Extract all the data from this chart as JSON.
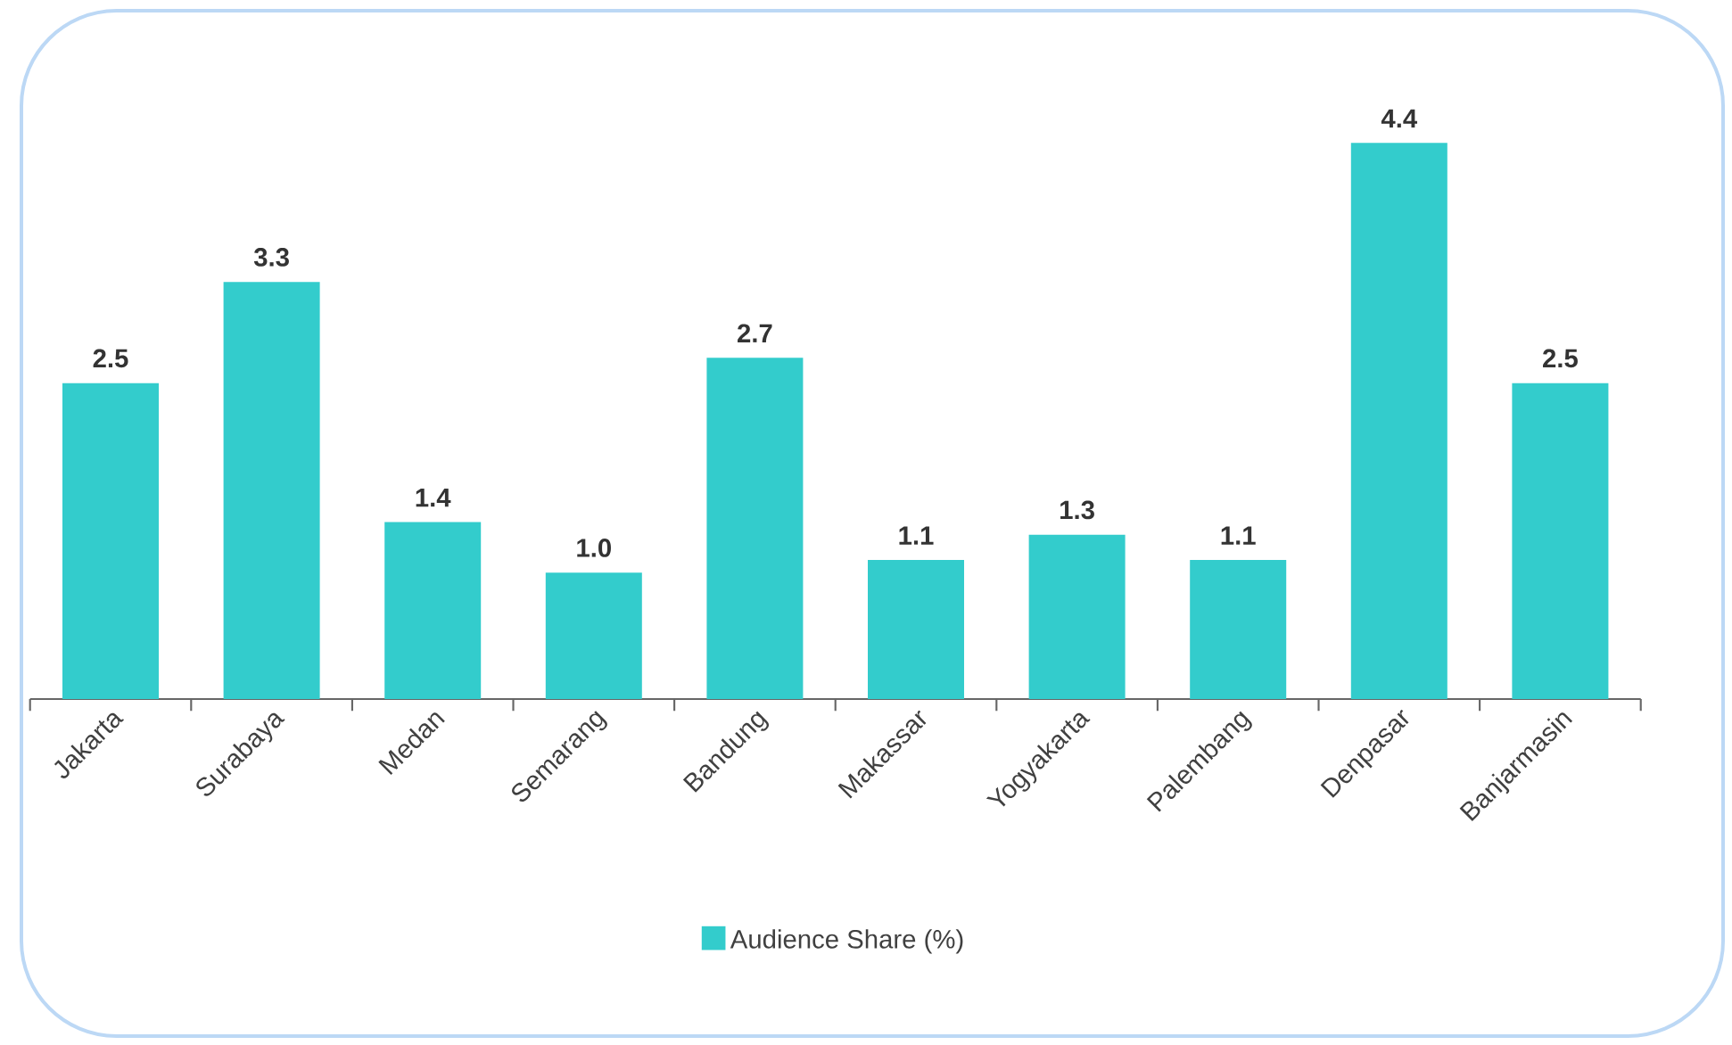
{
  "chart_data": {
    "type": "bar",
    "categories": [
      "Jakarta",
      "Surabaya",
      "Medan",
      "Semarang",
      "Bandung",
      "Makassar",
      "Yogyakarta",
      "Palembang",
      "Denpasar",
      "Banjarmasin"
    ],
    "series": [
      {
        "name": "Audience Share (%)",
        "color": "#33cccc",
        "values": [
          2.5,
          3.3,
          1.4,
          1.0,
          2.7,
          1.1,
          1.3,
          1.1,
          4.4,
          2.5
        ],
        "value_labels": [
          "2.5",
          "3.3",
          "1.4",
          "1.0",
          "2.7",
          "1.1",
          "1.3",
          "1.1",
          "4.4",
          "2.5"
        ]
      }
    ],
    "legend": "bottom",
    "grid": false
  }
}
